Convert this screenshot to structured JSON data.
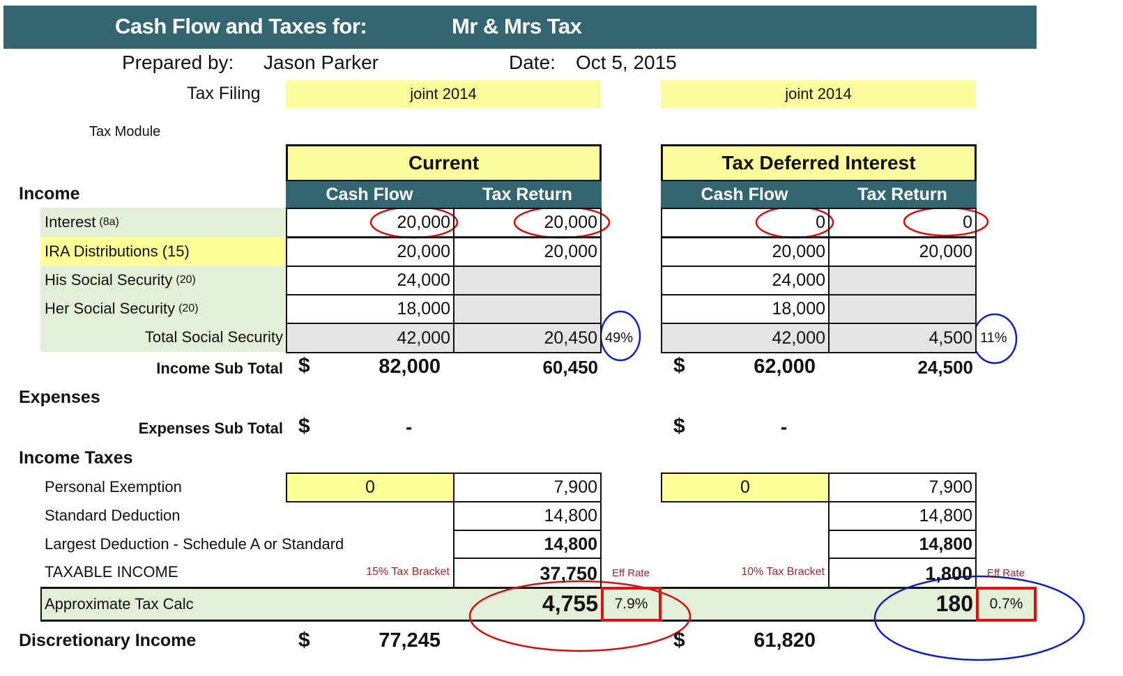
{
  "header": {
    "title": "Cash Flow and Taxes for:",
    "client": "Mr & Mrs Tax"
  },
  "meta": {
    "prepared_label": "Prepared by:",
    "preparer": "Jason Parker",
    "date_label": "Date:",
    "date": "Oct 5, 2015",
    "tax_filing_label": "Tax Filing",
    "module_label": "Tax Module"
  },
  "sections": {
    "income": "Income",
    "expenses": "Expenses",
    "income_taxes": "Income Taxes",
    "discretionary": "Discretionary Income"
  },
  "income_rows": [
    {
      "label": "Interest",
      "note": "(8a)"
    },
    {
      "label": "IRA Distributions (15)",
      "note": ""
    },
    {
      "label": "His Social Security",
      "note": "(20)"
    },
    {
      "label": "Her Social Security",
      "note": "(20)"
    },
    {
      "label": "Total Social Security",
      "note": ""
    }
  ],
  "labels": {
    "income_subtotal": "Income Sub Total",
    "expenses_subtotal": "Expenses Sub Total",
    "personal_exemption": "Personal Exemption",
    "standard_deduction": "Standard Deduction",
    "largest_deduction": "Largest Deduction - Schedule A or Standard",
    "taxable_income": "TAXABLE INCOME",
    "approx_tax": "Approximate Tax Calc",
    "currency": "$",
    "eff_rate": "Eff Rate"
  },
  "scenarios": [
    {
      "filing": "joint 2014",
      "title": "Current",
      "columns": [
        "Cash Flow",
        "Tax Return"
      ],
      "income": [
        [
          "20,000",
          "20,000"
        ],
        [
          "20,000",
          "20,000"
        ],
        [
          "24,000",
          ""
        ],
        [
          "18,000",
          ""
        ],
        [
          "42,000",
          "20,450"
        ]
      ],
      "ss_taxable_pct": "49%",
      "income_subtotal": [
        "82,000",
        "60,450"
      ],
      "expenses_subtotal": "-",
      "personal_exemption": [
        "0",
        "7,900"
      ],
      "standard_deduction": "14,800",
      "largest_deduction": "14,800",
      "bracket": "15% Tax Bracket",
      "taxable_income": "37,750",
      "approx_tax": "4,755",
      "eff_rate": "7.9%",
      "discretionary": "77,245"
    },
    {
      "filing": "joint 2014",
      "title": "Tax Deferred Interest",
      "columns": [
        "Cash Flow",
        "Tax Return"
      ],
      "income": [
        [
          "0",
          "0"
        ],
        [
          "20,000",
          "20,000"
        ],
        [
          "24,000",
          ""
        ],
        [
          "18,000",
          ""
        ],
        [
          "42,000",
          "4,500"
        ]
      ],
      "ss_taxable_pct": "11%",
      "income_subtotal": [
        "62,000",
        "24,500"
      ],
      "expenses_subtotal": "-",
      "personal_exemption": [
        "0",
        "7,900"
      ],
      "standard_deduction": "14,800",
      "largest_deduction": "14,800",
      "bracket": "10% Tax Bracket",
      "taxable_income": "1,800",
      "approx_tax": "180",
      "eff_rate": "0.7%",
      "discretionary": "61,820"
    }
  ],
  "colors": {
    "banner": "#336670",
    "highlight_yellow": "#ffff99",
    "income_green": "#e3efd6",
    "annotation_red": "#d01010",
    "annotation_blue": "#1020c0"
  }
}
